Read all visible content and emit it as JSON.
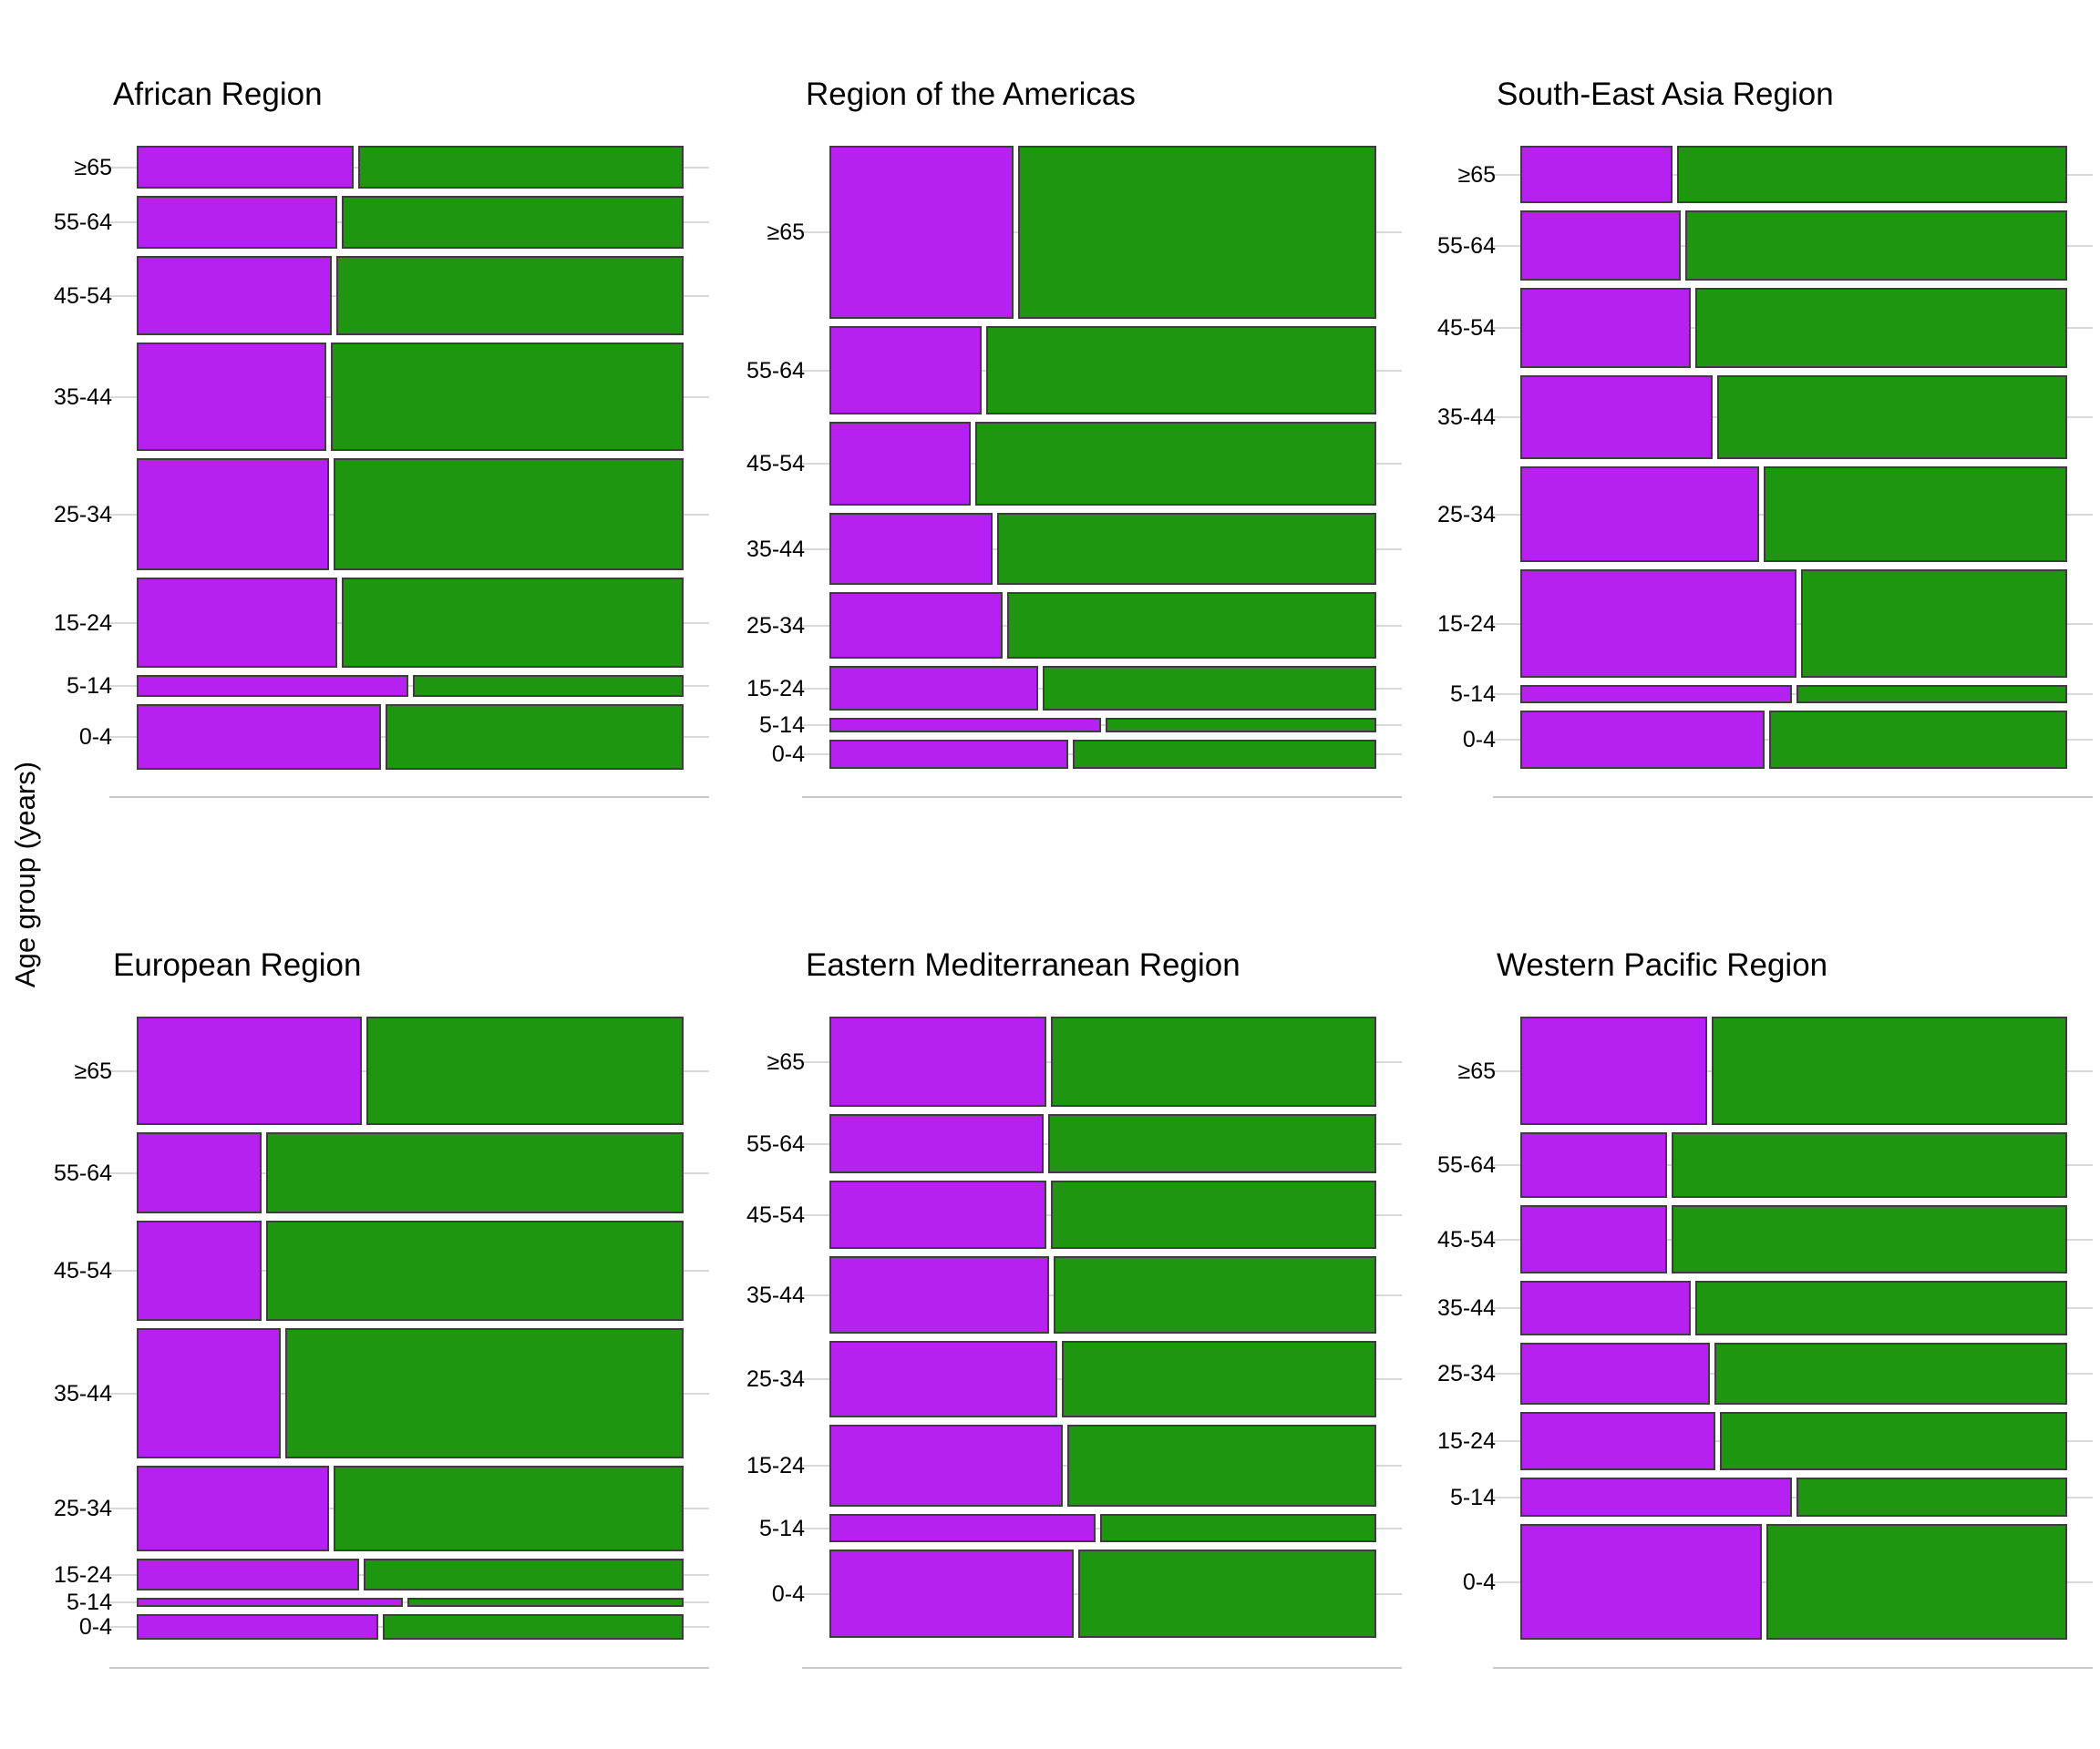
{
  "figure": {
    "y_axis_label": "Age group (years)"
  },
  "chart_data": {
    "type": "mosaic",
    "subtype": "normalized horizontal stacked bars with row heights proportional to group share",
    "y_axis_label": "Age group (years)",
    "age_groups_top_to_bottom": [
      "≥65",
      "55-64",
      "45-54",
      "35-44",
      "25-34",
      "15-24",
      "5-14",
      "0-4"
    ],
    "segments_left_to_right": [
      "purple",
      "green"
    ],
    "colors": {
      "purple": "#B620F0",
      "green": "#1E9610",
      "bar_border": "#3d3d3d",
      "gridline": "#d9d9d9",
      "axis_line": "#c9c9c9",
      "text": "#000000"
    },
    "legend": "none visible",
    "x_axis": "no ticks or labels visible",
    "panels": [
      {
        "title": "African Region",
        "rows": [
          {
            "age": "≥65",
            "height_share": 0.075,
            "purple_share": 0.4,
            "green_share": 0.6
          },
          {
            "age": "55-64",
            "height_share": 0.092,
            "purple_share": 0.37,
            "green_share": 0.63
          },
          {
            "age": "45-54",
            "height_share": 0.138,
            "purple_share": 0.36,
            "green_share": 0.64
          },
          {
            "age": "35-44",
            "height_share": 0.189,
            "purple_share": 0.35,
            "green_share": 0.65
          },
          {
            "age": "25-34",
            "height_share": 0.196,
            "purple_share": 0.355,
            "green_share": 0.645
          },
          {
            "age": "15-24",
            "height_share": 0.158,
            "purple_share": 0.37,
            "green_share": 0.63
          },
          {
            "age": "5-14",
            "height_share": 0.038,
            "purple_share": 0.5,
            "green_share": 0.5
          },
          {
            "age": "0-4",
            "height_share": 0.114,
            "purple_share": 0.45,
            "green_share": 0.55
          }
        ]
      },
      {
        "title": "Region of the Americas",
        "rows": [
          {
            "age": "≥65",
            "height_share": 0.303,
            "purple_share": 0.34,
            "green_share": 0.66
          },
          {
            "age": "55-64",
            "height_share": 0.155,
            "purple_share": 0.28,
            "green_share": 0.72
          },
          {
            "age": "45-54",
            "height_share": 0.147,
            "purple_share": 0.26,
            "green_share": 0.74
          },
          {
            "age": "35-44",
            "height_share": 0.126,
            "purple_share": 0.3,
            "green_share": 0.7
          },
          {
            "age": "25-34",
            "height_share": 0.116,
            "purple_share": 0.32,
            "green_share": 0.68
          },
          {
            "age": "15-24",
            "height_share": 0.078,
            "purple_share": 0.385,
            "green_share": 0.615
          },
          {
            "age": "5-14",
            "height_share": 0.025,
            "purple_share": 0.5,
            "green_share": 0.5
          },
          {
            "age": "0-4",
            "height_share": 0.051,
            "purple_share": 0.44,
            "green_share": 0.56
          }
        ]
      },
      {
        "title": "South-East Asia Region",
        "rows": [
          {
            "age": "≥65",
            "height_share": 0.1,
            "purple_share": 0.28,
            "green_share": 0.72
          },
          {
            "age": "55-64",
            "height_share": 0.123,
            "purple_share": 0.295,
            "green_share": 0.705
          },
          {
            "age": "45-54",
            "height_share": 0.14,
            "purple_share": 0.315,
            "green_share": 0.685
          },
          {
            "age": "35-44",
            "height_share": 0.146,
            "purple_share": 0.355,
            "green_share": 0.645
          },
          {
            "age": "25-34",
            "height_share": 0.167,
            "purple_share": 0.44,
            "green_share": 0.56
          },
          {
            "age": "15-24",
            "height_share": 0.19,
            "purple_share": 0.51,
            "green_share": 0.49
          },
          {
            "age": "5-14",
            "height_share": 0.032,
            "purple_share": 0.5,
            "green_share": 0.5
          },
          {
            "age": "0-4",
            "height_share": 0.102,
            "purple_share": 0.45,
            "green_share": 0.55
          }
        ]
      },
      {
        "title": "European Region",
        "rows": [
          {
            "age": "≥65",
            "height_share": 0.19,
            "purple_share": 0.415,
            "green_share": 0.585
          },
          {
            "age": "55-64",
            "height_share": 0.141,
            "purple_share": 0.23,
            "green_share": 0.77
          },
          {
            "age": "45-54",
            "height_share": 0.175,
            "purple_share": 0.23,
            "green_share": 0.77
          },
          {
            "age": "35-44",
            "height_share": 0.228,
            "purple_share": 0.265,
            "green_share": 0.735
          },
          {
            "age": "25-34",
            "height_share": 0.149,
            "purple_share": 0.355,
            "green_share": 0.645
          },
          {
            "age": "15-24",
            "height_share": 0.056,
            "purple_share": 0.41,
            "green_share": 0.59
          },
          {
            "age": "5-14",
            "height_share": 0.016,
            "purple_share": 0.49,
            "green_share": 0.51
          },
          {
            "age": "0-4",
            "height_share": 0.045,
            "purple_share": 0.445,
            "green_share": 0.555
          }
        ]
      },
      {
        "title": "Eastern Mediterranean Region",
        "rows": [
          {
            "age": "≥65",
            "height_share": 0.158,
            "purple_share": 0.4,
            "green_share": 0.6
          },
          {
            "age": "55-64",
            "height_share": 0.104,
            "purple_share": 0.395,
            "green_share": 0.605
          },
          {
            "age": "45-54",
            "height_share": 0.12,
            "purple_share": 0.4,
            "green_share": 0.6
          },
          {
            "age": "35-44",
            "height_share": 0.136,
            "purple_share": 0.405,
            "green_share": 0.595
          },
          {
            "age": "25-34",
            "height_share": 0.134,
            "purple_share": 0.42,
            "green_share": 0.58
          },
          {
            "age": "15-24",
            "height_share": 0.143,
            "purple_share": 0.43,
            "green_share": 0.57
          },
          {
            "age": "5-14",
            "height_share": 0.05,
            "purple_share": 0.49,
            "green_share": 0.51
          },
          {
            "age": "0-4",
            "height_share": 0.155,
            "purple_share": 0.45,
            "green_share": 0.55
          }
        ]
      },
      {
        "title": "Western Pacific Region",
        "rows": [
          {
            "age": "≥65",
            "height_share": 0.189,
            "purple_share": 0.345,
            "green_share": 0.655
          },
          {
            "age": "55-64",
            "height_share": 0.115,
            "purple_share": 0.27,
            "green_share": 0.73
          },
          {
            "age": "45-54",
            "height_share": 0.119,
            "purple_share": 0.27,
            "green_share": 0.73
          },
          {
            "age": "35-44",
            "height_share": 0.095,
            "purple_share": 0.315,
            "green_share": 0.685
          },
          {
            "age": "25-34",
            "height_share": 0.108,
            "purple_share": 0.35,
            "green_share": 0.65
          },
          {
            "age": "15-24",
            "height_share": 0.102,
            "purple_share": 0.36,
            "green_share": 0.64
          },
          {
            "age": "5-14",
            "height_share": 0.069,
            "purple_share": 0.5,
            "green_share": 0.5
          },
          {
            "age": "0-4",
            "height_share": 0.203,
            "purple_share": 0.445,
            "green_share": 0.555
          }
        ]
      }
    ]
  }
}
